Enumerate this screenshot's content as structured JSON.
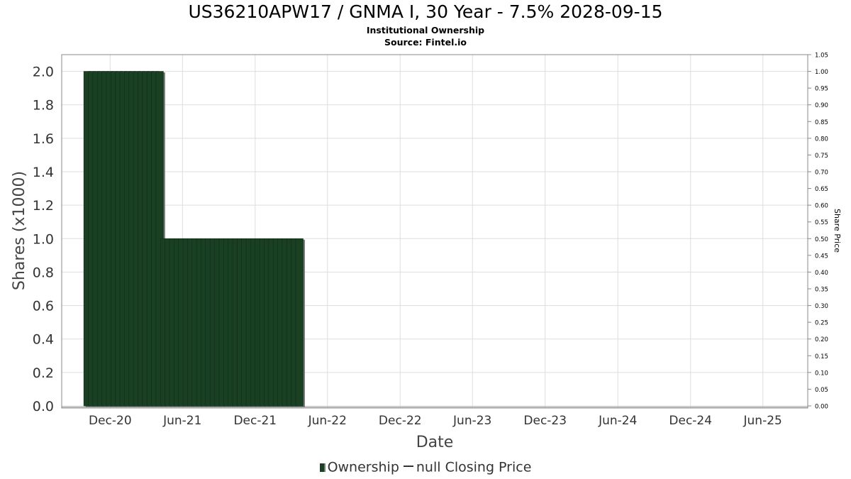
{
  "chart_data": {
    "type": "bar",
    "title": "US36210APW17 / GNMA I, 30 Year - 7.5% 2028-09-15",
    "subtitle": "Institutional Ownership",
    "source": "Source: Fintel.io",
    "xlabel": "Date",
    "ylabel": "Shares (x1000)",
    "y2label": "Share Price",
    "xlim": [
      "2020-08-01",
      "2025-09-22"
    ],
    "ylim": [
      0,
      2.1
    ],
    "y2lim": [
      0,
      1.05
    ],
    "yticks": [
      "0.0",
      "0.2",
      "0.4",
      "0.6",
      "0.8",
      "1.0",
      "1.2",
      "1.4",
      "1.6",
      "1.8",
      "2.0"
    ],
    "y2ticks": [
      "0.00",
      "0.05",
      "0.10",
      "0.15",
      "0.20",
      "0.25",
      "0.30",
      "0.35",
      "0.40",
      "0.45",
      "0.50",
      "0.55",
      "0.60",
      "0.65",
      "0.70",
      "0.75",
      "0.80",
      "0.85",
      "0.90",
      "0.95",
      "1.00",
      "1.05"
    ],
    "xticks": [
      {
        "label": "Dec-20",
        "date": "2020-12-01"
      },
      {
        "label": "Jun-21",
        "date": "2021-06-01"
      },
      {
        "label": "Dec-21",
        "date": "2021-12-01"
      },
      {
        "label": "Jun-22",
        "date": "2022-06-01"
      },
      {
        "label": "Dec-22",
        "date": "2022-12-01"
      },
      {
        "label": "Jun-23",
        "date": "2023-06-01"
      },
      {
        "label": "Dec-23",
        "date": "2023-12-01"
      },
      {
        "label": "Jun-24",
        "date": "2024-06-01"
      },
      {
        "label": "Dec-24",
        "date": "2024-12-01"
      },
      {
        "label": "Jun-25",
        "date": "2025-06-01"
      }
    ],
    "grid": true,
    "legend_position": "bottom",
    "series": [
      {
        "name": "Ownership",
        "color": "#1a4024",
        "shadow_color": "#7a7a7a",
        "start_date": "2020-10-05",
        "step_days": 11.35,
        "values": [
          2,
          2,
          2,
          2,
          2,
          2,
          2,
          2,
          2,
          2,
          2,
          2,
          2,
          2,
          2,
          2,
          2,
          1,
          1,
          1,
          1,
          1,
          1,
          1,
          1,
          1,
          1,
          1,
          1,
          1,
          1,
          1,
          1,
          1,
          1,
          1,
          1,
          1,
          1,
          1,
          1,
          1,
          1,
          1,
          1,
          1,
          1,
          1
        ]
      },
      {
        "name": "null Closing Price",
        "color": "#333333",
        "values": []
      }
    ]
  },
  "legend": {
    "ownership": "Ownership",
    "closing_price": "null Closing Price"
  }
}
